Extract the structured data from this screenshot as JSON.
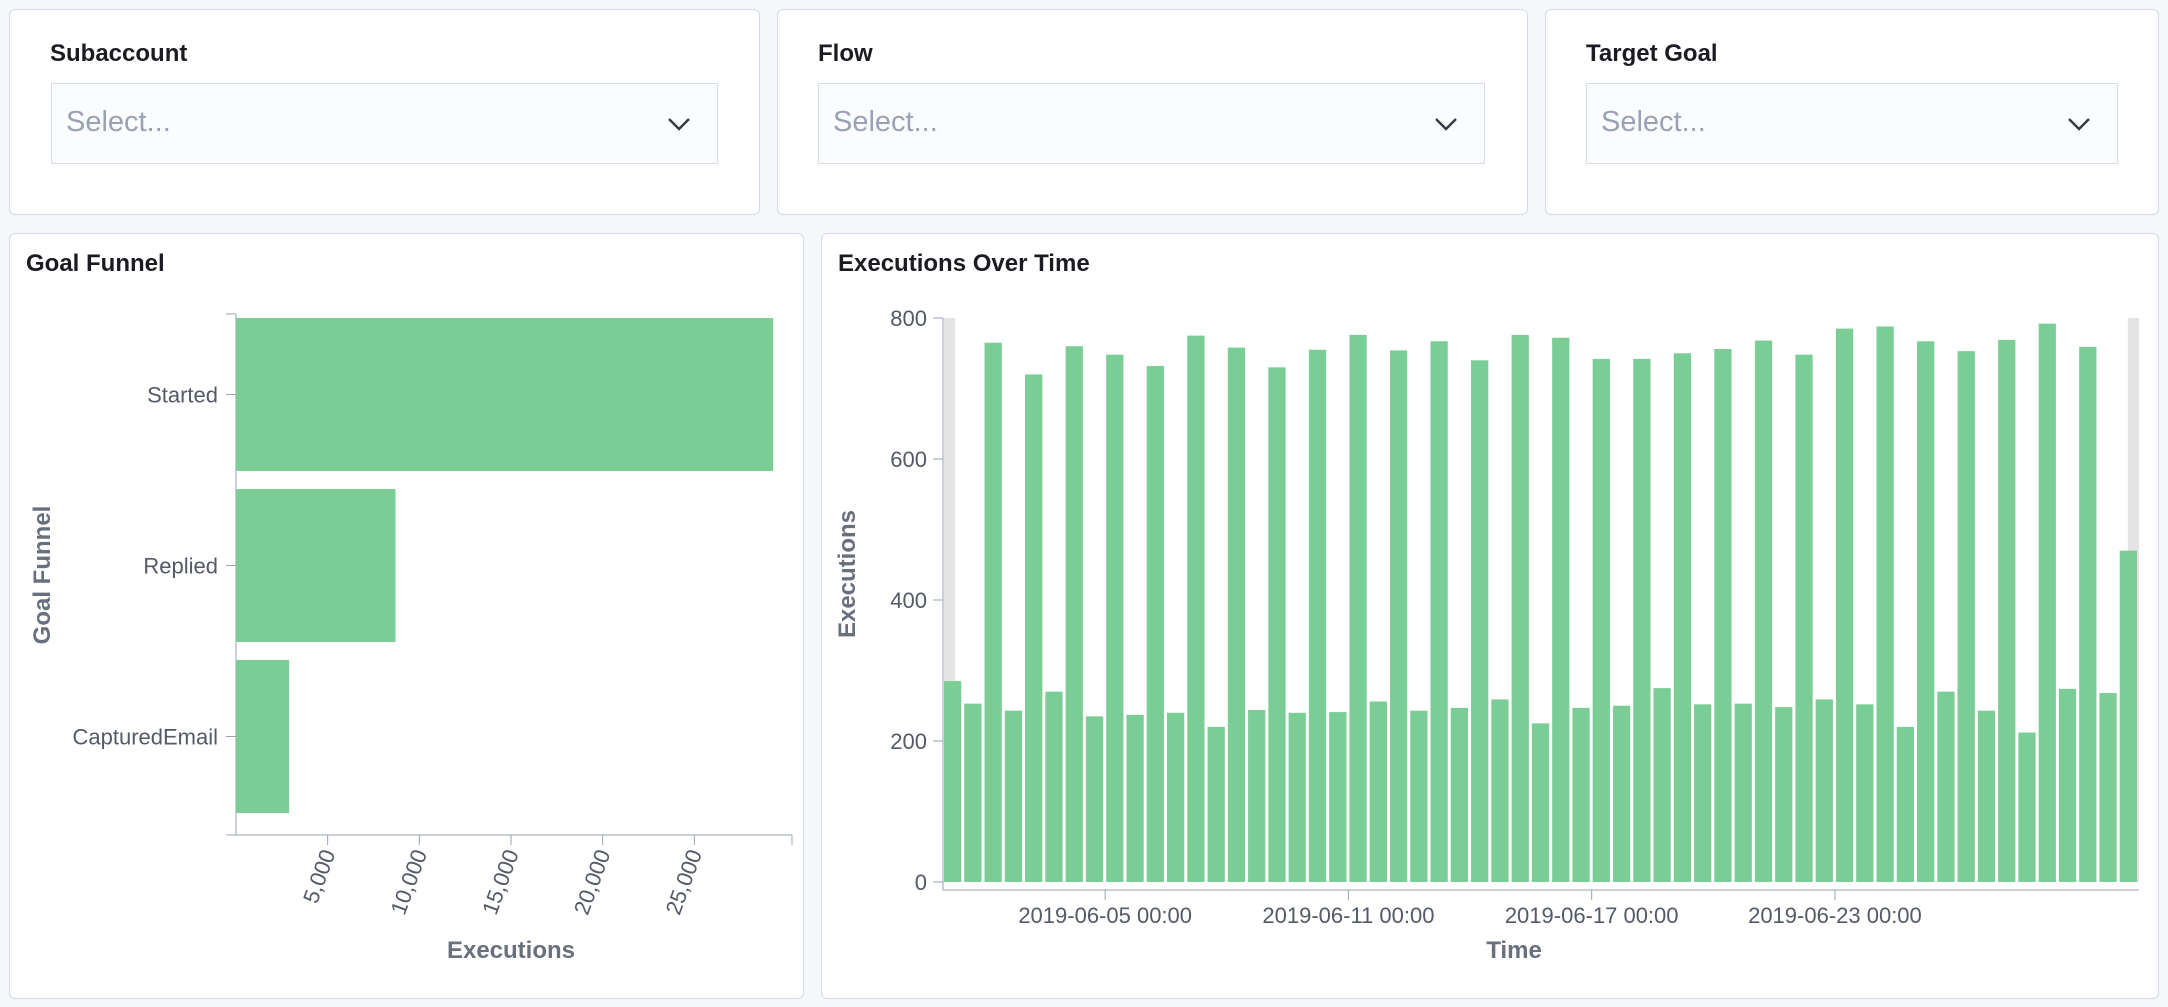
{
  "controls": [
    {
      "label": "Subaccount",
      "placeholder": "Select..."
    },
    {
      "label": "Flow",
      "placeholder": "Select..."
    },
    {
      "label": "Target Goal",
      "placeholder": "Select..."
    }
  ],
  "colors": {
    "bar": "#7ace95",
    "axis": "#98a2b3",
    "tick_text": "#535966",
    "title_text": "#69707d"
  },
  "chart_data": [
    {
      "type": "bar",
      "orientation": "horizontal",
      "title": "Goal Funnel",
      "categories": [
        "Started",
        "Replied",
        "CapturedEmail"
      ],
      "values": [
        29300,
        8700,
        2900
      ],
      "xlabel": "Executions",
      "ylabel": "Goal Funnel",
      "x_ticks": [
        "5,000",
        "10,000",
        "15,000",
        "20,000",
        "25,000"
      ],
      "x_tick_values": [
        5000,
        10000,
        15000,
        20000,
        25000
      ],
      "xlim": [
        0,
        30000
      ]
    },
    {
      "type": "bar",
      "title": "Executions Over Time",
      "xlabel": "Time",
      "ylabel": "Executions",
      "ylim": [
        0,
        800
      ],
      "y_ticks": [
        0,
        200,
        400,
        600,
        800
      ],
      "x_ticks": [
        "2019-06-05 00:00",
        "2019-06-11 00:00",
        "2019-06-17 00:00",
        "2019-06-23 00:00"
      ],
      "x_tick_indices": [
        8,
        20,
        32,
        44
      ],
      "values": [
        285,
        253,
        765,
        243,
        720,
        270,
        760,
        235,
        748,
        237,
        732,
        240,
        775,
        220,
        758,
        244,
        730,
        240,
        755,
        241,
        776,
        256,
        754,
        243,
        767,
        247,
        740,
        259,
        776,
        225,
        772,
        247,
        742,
        250,
        742,
        275,
        750,
        252,
        756,
        253,
        768,
        248,
        748,
        259,
        785,
        252,
        788,
        220,
        767,
        270,
        753,
        243,
        769,
        212,
        792,
        274,
        759,
        268,
        470
      ]
    }
  ]
}
